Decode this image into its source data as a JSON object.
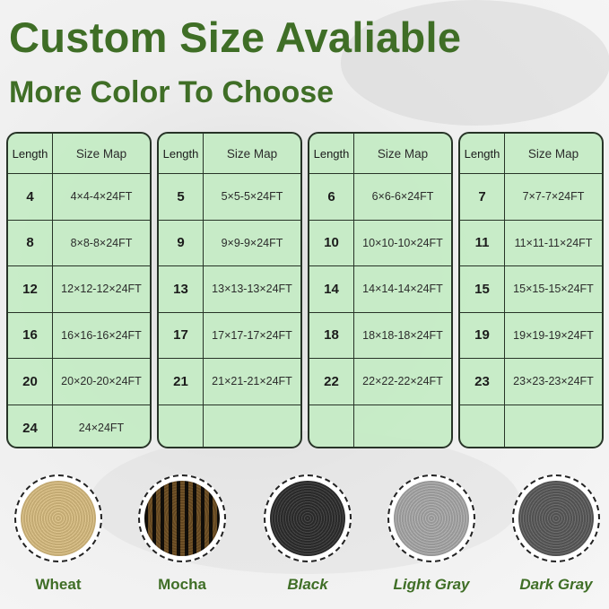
{
  "title": "Custom Size Avaliable",
  "subtitle": "More Color To Choose",
  "table_headers": {
    "length": "Length",
    "size_map": "Size Map"
  },
  "tables": [
    {
      "rows": [
        {
          "length": "4",
          "size": "4×4-4×24FT"
        },
        {
          "length": "8",
          "size": "8×8-8×24FT"
        },
        {
          "length": "12",
          "size": "12×12-12×24FT"
        },
        {
          "length": "16",
          "size": "16×16-16×24FT"
        },
        {
          "length": "20",
          "size": "20×20-20×24FT"
        },
        {
          "length": "24",
          "size": "24×24FT"
        }
      ]
    },
    {
      "rows": [
        {
          "length": "5",
          "size": "5×5-5×24FT"
        },
        {
          "length": "9",
          "size": "9×9-9×24FT"
        },
        {
          "length": "13",
          "size": "13×13-13×24FT"
        },
        {
          "length": "17",
          "size": "17×17-17×24FT"
        },
        {
          "length": "21",
          "size": "21×21-21×24FT"
        },
        {
          "length": "",
          "size": ""
        }
      ]
    },
    {
      "rows": [
        {
          "length": "6",
          "size": "6×6-6×24FT"
        },
        {
          "length": "10",
          "size": "10×10-10×24FT"
        },
        {
          "length": "14",
          "size": "14×14-14×24FT"
        },
        {
          "length": "18",
          "size": "18×18-18×24FT"
        },
        {
          "length": "22",
          "size": "22×22-22×24FT"
        },
        {
          "length": "",
          "size": ""
        }
      ]
    },
    {
      "rows": [
        {
          "length": "7",
          "size": "7×7-7×24FT"
        },
        {
          "length": "11",
          "size": "11×11-11×24FT"
        },
        {
          "length": "15",
          "size": "15×15-15×24FT"
        },
        {
          "length": "19",
          "size": "19×19-19×24FT"
        },
        {
          "length": "23",
          "size": "23×23-23×24FT"
        },
        {
          "length": "",
          "size": ""
        }
      ]
    }
  ],
  "colors": [
    {
      "name": "Wheat",
      "swatch": "#d9bd80",
      "italic": false
    },
    {
      "name": "Mocha",
      "swatch": "#8a7450",
      "italic": false
    },
    {
      "name": "Black",
      "swatch": "#2e2e2e",
      "italic": true
    },
    {
      "name": "Light Gray",
      "swatch": "#a8a8a8",
      "italic": true
    },
    {
      "name": "Dark Gray",
      "swatch": "#5a5a5a",
      "italic": true
    }
  ]
}
